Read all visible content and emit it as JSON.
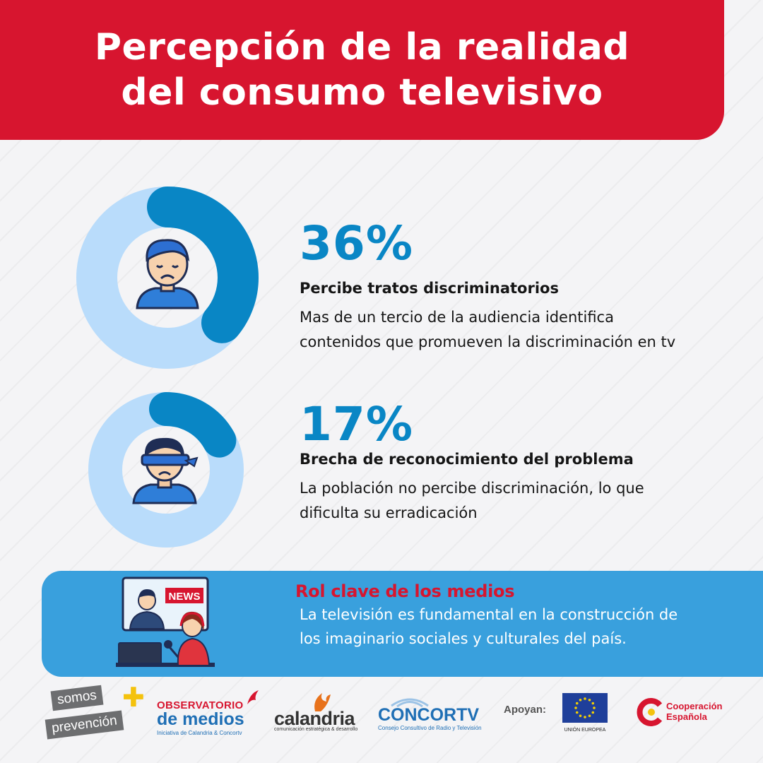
{
  "header": {
    "title_line1": "Percepción de la realidad",
    "title_line2": "del consumo televisivo"
  },
  "stats": [
    {
      "percent": "36%",
      "heading": "Percibe tratos discriminatorios",
      "text": "Mas de un tercio de la audiencia identifica contenidos que promueven la discriminación en tv"
    },
    {
      "percent": "17%",
      "heading": "Brecha de reconocimiento del problema",
      "text": "La población no percibe discriminación, lo que dificulta su erradicación"
    }
  ],
  "banner": {
    "title": "Rol clave de los medios",
    "text": "La televisión es fundamental en la construcción de los imaginario sociales y culturales del país.",
    "news_label": "NEWS"
  },
  "footer": {
    "somos_line1": "somos",
    "somos_line2": "prevención",
    "observatorio_line1": "OBSERVATORIO",
    "observatorio_line2": "de medios",
    "observatorio_tagline": "Iniciativa de Calandria & Concortv",
    "calandria_name": "calandria",
    "calandria_tagline": "comunicación estratégica & desarrollo",
    "concortv_name": "CONCORTV",
    "concortv_tagline": "Consejo Consultivo de Radio y Televisión",
    "apoyan": "Apoyan:",
    "eu_caption": "UNIÓN EUROPEA",
    "cooperacion_line1": "Cooperación",
    "cooperacion_line2": "Española"
  },
  "colors": {
    "brand_red": "#d7152f",
    "accent_blue": "#0986c5",
    "ring_light": "#b9dcfb",
    "banner_blue": "#39a0dd"
  },
  "chart_data": {
    "type": "pie",
    "charts": [
      {
        "value": 36,
        "label": "Percibe tratos discriminatorios"
      },
      {
        "value": 17,
        "label": "Brecha de reconocimiento del problema"
      }
    ]
  }
}
